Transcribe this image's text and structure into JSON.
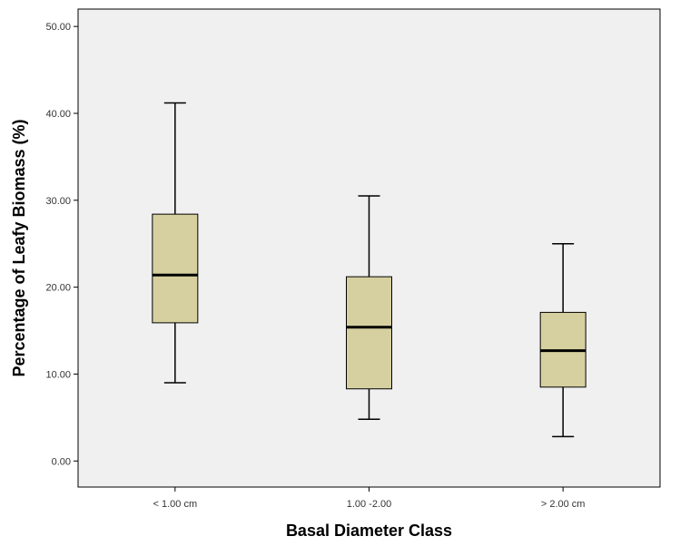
{
  "chart_data": {
    "type": "boxplot",
    "xlabel": "Basal Diameter Class",
    "ylabel": "Percentage of Leafy Biomass (%)",
    "ylim": [
      -3,
      52
    ],
    "yticks": [
      0,
      10,
      20,
      30,
      40,
      50
    ],
    "ytick_labels": [
      "0.00",
      "10.00",
      "20.00",
      "30.00",
      "40.00",
      "50.00"
    ],
    "categories": [
      "< 1.00 cm",
      "1.00 -2.00",
      "> 2.00 cm"
    ],
    "boxes": [
      {
        "category": "< 1.00 cm",
        "whisker_low": 9.0,
        "q1": 15.9,
        "median": 21.4,
        "q3": 28.4,
        "whisker_high": 41.2
      },
      {
        "category": "1.00 -2.00",
        "whisker_low": 4.8,
        "q1": 8.3,
        "median": 15.4,
        "q3": 21.2,
        "whisker_high": 30.5
      },
      {
        "category": "> 2.00 cm",
        "whisker_low": 2.8,
        "q1": 8.5,
        "median": 12.7,
        "q3": 17.1,
        "whisker_high": 25.0
      }
    ],
    "grid": false,
    "colors": {
      "plot_background": "#f0f0f0",
      "box_fill": "#d6d0a0",
      "line": "#000000"
    }
  }
}
